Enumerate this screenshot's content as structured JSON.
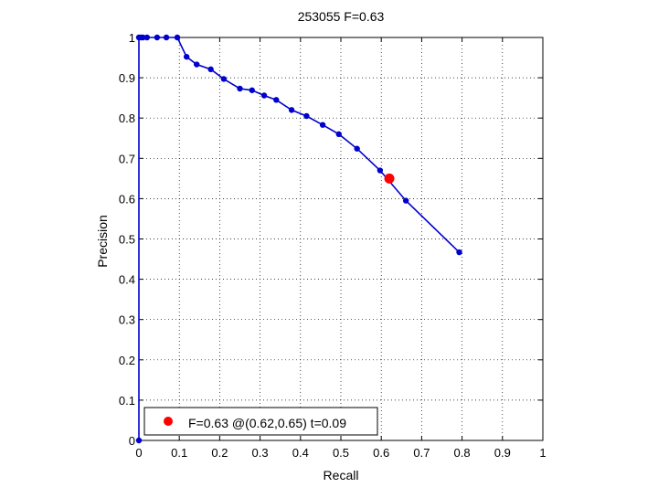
{
  "chart_data": {
    "type": "line",
    "title": "253055 F=0.63",
    "xlabel": "Recall",
    "ylabel": "Precision",
    "xlim": [
      0,
      1
    ],
    "ylim": [
      0,
      1
    ],
    "xticks": [
      0,
      0.1,
      0.2,
      0.3,
      0.4,
      0.5,
      0.6,
      0.7,
      0.8,
      0.9,
      1
    ],
    "yticks": [
      0,
      0.1,
      0.2,
      0.3,
      0.4,
      0.5,
      0.6,
      0.7,
      0.8,
      0.9,
      1
    ],
    "xtick_labels": [
      "0",
      "0.1",
      "0.2",
      "0.3",
      "0.4",
      "0.5",
      "0.6",
      "0.7",
      "0.8",
      "0.9",
      "1"
    ],
    "ytick_labels": [
      "0",
      "0.1",
      "0.2",
      "0.3",
      "0.4",
      "0.5",
      "0.6",
      "0.7",
      "0.8",
      "0.9",
      "1"
    ],
    "grid": true,
    "legend_position": "bottom-left",
    "series": [
      {
        "color": "#0000cc",
        "marker": "dot",
        "points": [
          [
            0.0,
            0.0
          ],
          [
            0.0,
            1.0
          ],
          [
            0.005,
            1.0
          ],
          [
            0.01,
            1.0
          ],
          [
            0.02,
            1.0
          ],
          [
            0.045,
            1.0
          ],
          [
            0.068,
            1.0
          ],
          [
            0.095,
            1.0
          ],
          [
            0.118,
            0.952
          ],
          [
            0.143,
            0.933
          ],
          [
            0.178,
            0.921
          ],
          [
            0.21,
            0.897
          ],
          [
            0.25,
            0.873
          ],
          [
            0.28,
            0.869
          ],
          [
            0.31,
            0.856
          ],
          [
            0.34,
            0.845
          ],
          [
            0.378,
            0.82
          ],
          [
            0.415,
            0.805
          ],
          [
            0.455,
            0.783
          ],
          [
            0.495,
            0.76
          ],
          [
            0.54,
            0.724
          ],
          [
            0.597,
            0.67
          ],
          [
            0.661,
            0.595
          ],
          [
            0.793,
            0.467
          ]
        ]
      }
    ],
    "highlight": {
      "x": 0.62,
      "y": 0.65,
      "color": "#ff0000",
      "label": "F=0.63 @(0.62,0.65) t=0.09"
    }
  }
}
